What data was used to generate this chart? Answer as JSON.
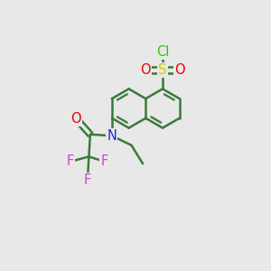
{
  "bg_color": "#e8e8e8",
  "bond_color": "#3a7a3a",
  "bond_width": 1.8,
  "S_color": "#cccc00",
  "O_color": "#ee0000",
  "Cl_color": "#22cc00",
  "N_color": "#2222dd",
  "F_color": "#cc44cc",
  "font_size": 10.5,
  "fig_size": [
    3.0,
    3.0
  ],
  "dpi": 100,
  "xlim": [
    0,
    10
  ],
  "ylim": [
    0,
    10
  ]
}
